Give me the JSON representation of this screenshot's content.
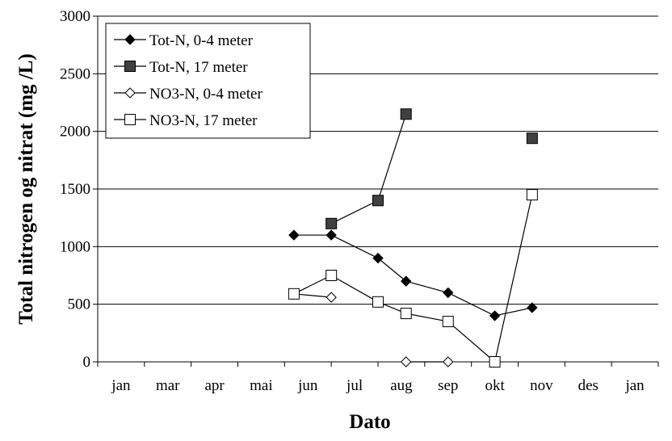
{
  "chart_data": {
    "type": "line",
    "title": "",
    "xlabel": "Dato",
    "ylabel": "Total nitrogen og nitrat (mg /L)",
    "ylim": [
      0,
      3000
    ],
    "yticks": [
      0,
      500,
      1000,
      1500,
      2000,
      2500,
      3000
    ],
    "xlim": [
      0,
      12
    ],
    "xtick_labels": [
      "jan",
      "mar",
      "apr",
      "mai",
      "jun",
      "jul",
      "aug",
      "sep",
      "okt",
      "nov",
      "des",
      "jan"
    ],
    "grid": "horizontal",
    "legend_position": "top-left",
    "series": [
      {
        "name": "Tot-N, 0-4 meter",
        "marker": "diamond-filled",
        "color": "#000000",
        "x": [
          4.2,
          5.0,
          6.0,
          6.6,
          7.5,
          8.5,
          9.3
        ],
        "y": [
          1100,
          1100,
          900,
          700,
          600,
          400,
          470
        ],
        "connected": true
      },
      {
        "name": "Tot-N, 17 meter",
        "marker": "square-filled",
        "color": "#404040",
        "x": [
          5.0,
          6.0,
          6.6,
          9.3
        ],
        "y": [
          1200,
          1400,
          2150,
          1940
        ],
        "connected": [
          true,
          true,
          false
        ]
      },
      {
        "name": "NO3-N, 0-4 meter",
        "marker": "diamond-open",
        "color": "#000000",
        "x": [
          4.2,
          5.0,
          6.6,
          7.5
        ],
        "y": [
          590,
          560,
          0,
          0
        ],
        "connected": [
          true,
          false,
          true
        ]
      },
      {
        "name": "NO3-N, 17 meter",
        "marker": "square-open",
        "color": "#000000",
        "x": [
          4.2,
          5.0,
          6.0,
          6.6,
          7.5,
          8.5,
          9.3
        ],
        "y": [
          590,
          750,
          520,
          420,
          350,
          0,
          1450
        ],
        "connected": true
      }
    ]
  }
}
